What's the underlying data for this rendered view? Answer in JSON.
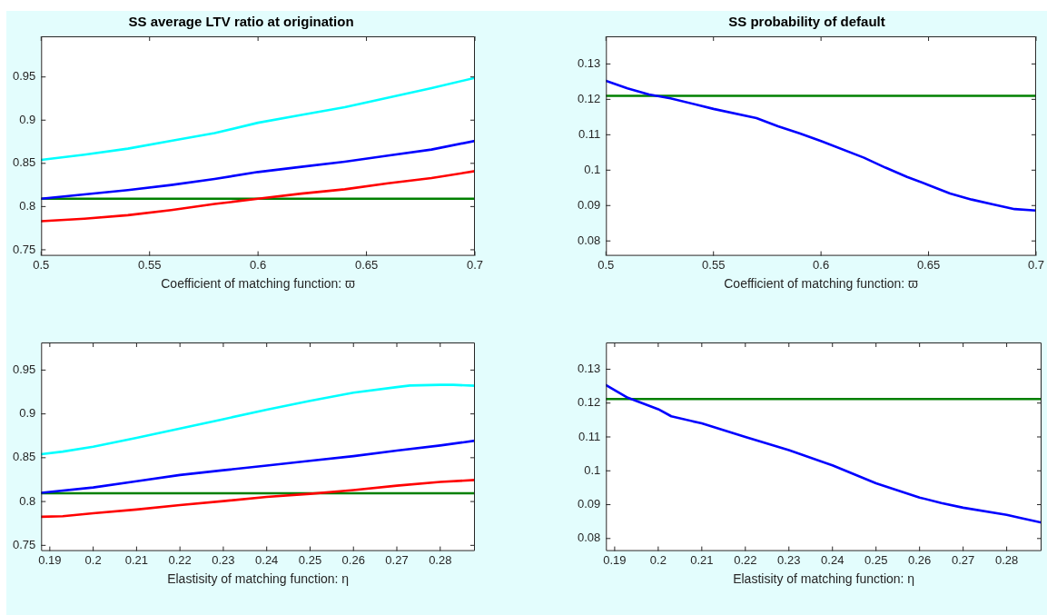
{
  "chart_data": [
    {
      "type": "line",
      "title": "SS average LTV ratio at origination",
      "xlabel": "Coefficient of matching function: ϖ",
      "xlim": [
        0.5,
        0.7
      ],
      "xticks": [
        0.5,
        0.55,
        0.6,
        0.65,
        0.7
      ],
      "ylim": [
        0.743,
        0.997
      ],
      "yticks": [
        0.75,
        0.8,
        0.85,
        0.9,
        0.95
      ],
      "series": [
        {
          "color": "#00ffff",
          "x": [
            0.5,
            0.52,
            0.54,
            0.56,
            0.58,
            0.6,
            0.62,
            0.64,
            0.66,
            0.68,
            0.7
          ],
          "values": [
            0.854,
            0.86,
            0.867,
            0.876,
            0.885,
            0.897,
            0.906,
            0.915,
            0.926,
            0.937,
            0.949
          ]
        },
        {
          "color": "#0000ff",
          "x": [
            0.5,
            0.52,
            0.54,
            0.56,
            0.58,
            0.6,
            0.62,
            0.64,
            0.66,
            0.68,
            0.7
          ],
          "values": [
            0.809,
            0.814,
            0.819,
            0.825,
            0.832,
            0.84,
            0.846,
            0.852,
            0.859,
            0.866,
            0.876
          ]
        },
        {
          "color": "#ff0000",
          "x": [
            0.5,
            0.52,
            0.54,
            0.56,
            0.58,
            0.6,
            0.62,
            0.64,
            0.66,
            0.68,
            0.7
          ],
          "values": [
            0.783,
            0.786,
            0.79,
            0.796,
            0.803,
            0.809,
            0.815,
            0.82,
            0.827,
            0.833,
            0.841
          ]
        },
        {
          "color": "#008000",
          "x": [
            0.5,
            0.7
          ],
          "values": [
            0.809,
            0.809
          ]
        }
      ]
    },
    {
      "type": "line",
      "title": "SS probability of default",
      "xlabel": "Coefficient of matching function: ϖ",
      "xlim": [
        0.5,
        0.7
      ],
      "xticks": [
        0.5,
        0.55,
        0.6,
        0.65,
        0.7
      ],
      "ylim": [
        0.0758,
        0.1378
      ],
      "yticks": [
        0.08,
        0.09,
        0.1,
        0.11,
        0.12,
        0.13
      ],
      "series": [
        {
          "color": "#0000ff",
          "x": [
            0.5,
            0.51,
            0.52,
            0.53,
            0.55,
            0.57,
            0.58,
            0.59,
            0.6,
            0.62,
            0.63,
            0.64,
            0.65,
            0.66,
            0.67,
            0.68,
            0.69,
            0.7
          ],
          "values": [
            0.1252,
            0.1231,
            0.1214,
            0.1203,
            0.1173,
            0.1147,
            0.1124,
            0.1104,
            0.1082,
            0.1035,
            0.1007,
            0.0981,
            0.0958,
            0.0934,
            0.0917,
            0.0903,
            0.089,
            0.0886
          ]
        },
        {
          "color": "#008000",
          "x": [
            0.5,
            0.7
          ],
          "values": [
            0.121,
            0.121
          ]
        }
      ]
    },
    {
      "type": "line",
      "xlabel": "Elastisity of matching function: η",
      "xlim": [
        0.188,
        0.288
      ],
      "xticks": [
        0.19,
        0.2,
        0.21,
        0.22,
        0.23,
        0.24,
        0.25,
        0.26,
        0.27,
        0.28
      ],
      "ylim": [
        0.7435,
        0.9815
      ],
      "yticks": [
        0.75,
        0.8,
        0.85,
        0.9,
        0.95
      ],
      "series": [
        {
          "color": "#00ffff",
          "x": [
            0.188,
            0.193,
            0.2,
            0.21,
            0.22,
            0.23,
            0.24,
            0.25,
            0.26,
            0.27,
            0.273,
            0.28,
            0.283,
            0.288
          ],
          "values": [
            0.854,
            0.857,
            0.8625,
            0.8726,
            0.8833,
            0.894,
            0.9048,
            0.9149,
            0.9242,
            0.9306,
            0.9324,
            0.9332,
            0.9332,
            0.9321
          ]
        },
        {
          "color": "#0000ff",
          "x": [
            0.188,
            0.2,
            0.21,
            0.22,
            0.23,
            0.24,
            0.25,
            0.26,
            0.27,
            0.28,
            0.288
          ],
          "values": [
            0.8099,
            0.816,
            0.8231,
            0.8303,
            0.8357,
            0.841,
            0.8464,
            0.8518,
            0.8582,
            0.864,
            0.8694
          ]
        },
        {
          "color": "#ff0000",
          "x": [
            0.188,
            0.193,
            0.2,
            0.21,
            0.22,
            0.23,
            0.24,
            0.25,
            0.26,
            0.27,
            0.28,
            0.288
          ],
          "values": [
            0.7826,
            0.7833,
            0.7866,
            0.7909,
            0.7959,
            0.8005,
            0.8052,
            0.8088,
            0.8131,
            0.8181,
            0.8224,
            0.8246
          ]
        },
        {
          "color": "#008000",
          "x": [
            0.188,
            0.288
          ],
          "values": [
            0.8095,
            0.8095
          ]
        }
      ]
    },
    {
      "type": "line",
      "xlabel": "Elastisity of matching function: η",
      "xlim": [
        0.188,
        0.288
      ],
      "xticks": [
        0.19,
        0.2,
        0.21,
        0.22,
        0.23,
        0.24,
        0.25,
        0.26,
        0.27,
        0.28
      ],
      "ylim": [
        0.0763,
        0.1379
      ],
      "yticks": [
        0.08,
        0.09,
        0.1,
        0.11,
        0.12,
        0.13
      ],
      "series": [
        {
          "color": "#0000ff",
          "x": [
            0.188,
            0.193,
            0.2,
            0.203,
            0.21,
            0.22,
            0.23,
            0.24,
            0.25,
            0.26,
            0.265,
            0.27,
            0.28,
            0.283,
            0.288
          ],
          "values": [
            0.1253,
            0.1216,
            0.1182,
            0.1161,
            0.114,
            0.11,
            0.1061,
            0.1016,
            0.0963,
            0.0921,
            0.0905,
            0.0891,
            0.087,
            0.0861,
            0.0847
          ]
        },
        {
          "color": "#008000",
          "x": [
            0.188,
            0.288
          ],
          "values": [
            0.1212,
            0.1212
          ]
        }
      ]
    }
  ]
}
